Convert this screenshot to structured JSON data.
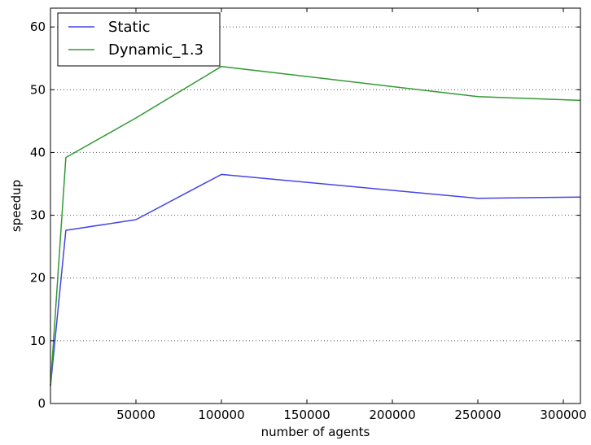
{
  "chart_data": {
    "type": "line",
    "title": "",
    "xlabel": "number of agents",
    "ylabel": "speedup",
    "xlim": [
      0,
      310000
    ],
    "ylim": [
      0,
      63
    ],
    "x_ticks": [
      50000,
      100000,
      150000,
      200000,
      250000,
      300000
    ],
    "x_tick_labels": [
      "50000",
      "100000",
      "150000",
      "200000",
      "250000",
      "300000"
    ],
    "y_ticks": [
      0,
      10,
      20,
      30,
      40,
      50,
      60
    ],
    "y_tick_labels": [
      "0",
      "10",
      "20",
      "30",
      "40",
      "50",
      "60"
    ],
    "grid": "horizontal dotted",
    "legend_position": "top-left",
    "series": [
      {
        "name": "Static",
        "color": "#4444e6",
        "x": [
          0,
          9000,
          50000,
          100000,
          250000,
          310000
        ],
        "y": [
          2.8,
          27.6,
          29.3,
          36.5,
          32.7,
          32.9
        ]
      },
      {
        "name": "Dynamic_1.3",
        "color": "#339933",
        "x": [
          0,
          9000,
          50000,
          100000,
          250000,
          310000
        ],
        "y": [
          2.8,
          39.2,
          45.5,
          53.7,
          48.9,
          48.3
        ]
      }
    ]
  }
}
